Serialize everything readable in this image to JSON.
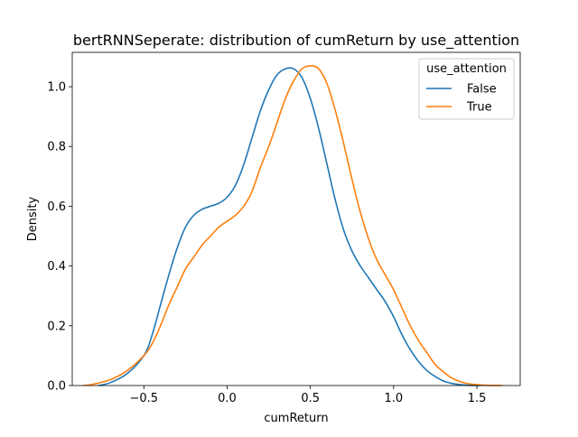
{
  "chart_data": {
    "type": "line",
    "title": "bertRNNSeperate: distribution of cumReturn by use_attention",
    "xlabel": "cumReturn",
    "ylabel": "Density",
    "xlim": [
      -0.93,
      1.76
    ],
    "ylim": [
      0,
      1.115
    ],
    "xticks": [
      -0.5,
      0.0,
      0.5,
      1.0,
      1.5
    ],
    "xtick_labels": [
      "−0.5",
      "0.0",
      "0.5",
      "1.0",
      "1.5"
    ],
    "yticks": [
      0.0,
      0.2,
      0.4,
      0.6,
      0.8,
      1.0
    ],
    "ytick_labels": [
      "0.0",
      "0.2",
      "0.4",
      "0.6",
      "0.8",
      "1.0"
    ],
    "grid": false,
    "legend": {
      "title": "use_attention",
      "placement": "top-right"
    },
    "series": [
      {
        "name": "False",
        "color": "#1f77b4",
        "x": [
          -0.77,
          -0.7,
          -0.6,
          -0.5,
          -0.45,
          -0.4,
          -0.35,
          -0.3,
          -0.25,
          -0.2,
          -0.15,
          -0.1,
          -0.05,
          0.0,
          0.05,
          0.1,
          0.15,
          0.2,
          0.25,
          0.3,
          0.35,
          0.4,
          0.45,
          0.5,
          0.55,
          0.6,
          0.65,
          0.7,
          0.75,
          0.8,
          0.85,
          0.9,
          0.95,
          1.0,
          1.05,
          1.1,
          1.15,
          1.2,
          1.25,
          1.3,
          1.35,
          1.4,
          1.45,
          1.52
        ],
        "y": [
          0.0,
          0.01,
          0.04,
          0.1,
          0.17,
          0.27,
          0.37,
          0.46,
          0.53,
          0.57,
          0.59,
          0.6,
          0.61,
          0.63,
          0.67,
          0.74,
          0.83,
          0.92,
          0.99,
          1.04,
          1.06,
          1.06,
          1.03,
          0.96,
          0.86,
          0.74,
          0.62,
          0.52,
          0.45,
          0.4,
          0.36,
          0.32,
          0.28,
          0.23,
          0.17,
          0.12,
          0.08,
          0.05,
          0.03,
          0.015,
          0.007,
          0.003,
          0.001,
          0.0
        ]
      },
      {
        "name": "True",
        "color": "#ff7f0e",
        "x": [
          -0.86,
          -0.8,
          -0.7,
          -0.6,
          -0.5,
          -0.45,
          -0.4,
          -0.35,
          -0.3,
          -0.25,
          -0.2,
          -0.15,
          -0.1,
          -0.05,
          0.0,
          0.05,
          0.1,
          0.15,
          0.2,
          0.25,
          0.3,
          0.35,
          0.4,
          0.45,
          0.5,
          0.55,
          0.6,
          0.65,
          0.7,
          0.75,
          0.8,
          0.85,
          0.9,
          0.95,
          1.0,
          1.05,
          1.1,
          1.15,
          1.2,
          1.25,
          1.3,
          1.35,
          1.4,
          1.45,
          1.5,
          1.55,
          1.65
        ],
        "y": [
          0.0,
          0.005,
          0.02,
          0.05,
          0.1,
          0.14,
          0.2,
          0.27,
          0.33,
          0.39,
          0.43,
          0.47,
          0.5,
          0.53,
          0.55,
          0.57,
          0.6,
          0.65,
          0.73,
          0.8,
          0.88,
          0.96,
          1.02,
          1.06,
          1.07,
          1.06,
          1.01,
          0.92,
          0.81,
          0.69,
          0.58,
          0.49,
          0.42,
          0.37,
          0.32,
          0.26,
          0.2,
          0.15,
          0.11,
          0.07,
          0.045,
          0.025,
          0.013,
          0.006,
          0.003,
          0.001,
          0.0
        ]
      }
    ]
  }
}
